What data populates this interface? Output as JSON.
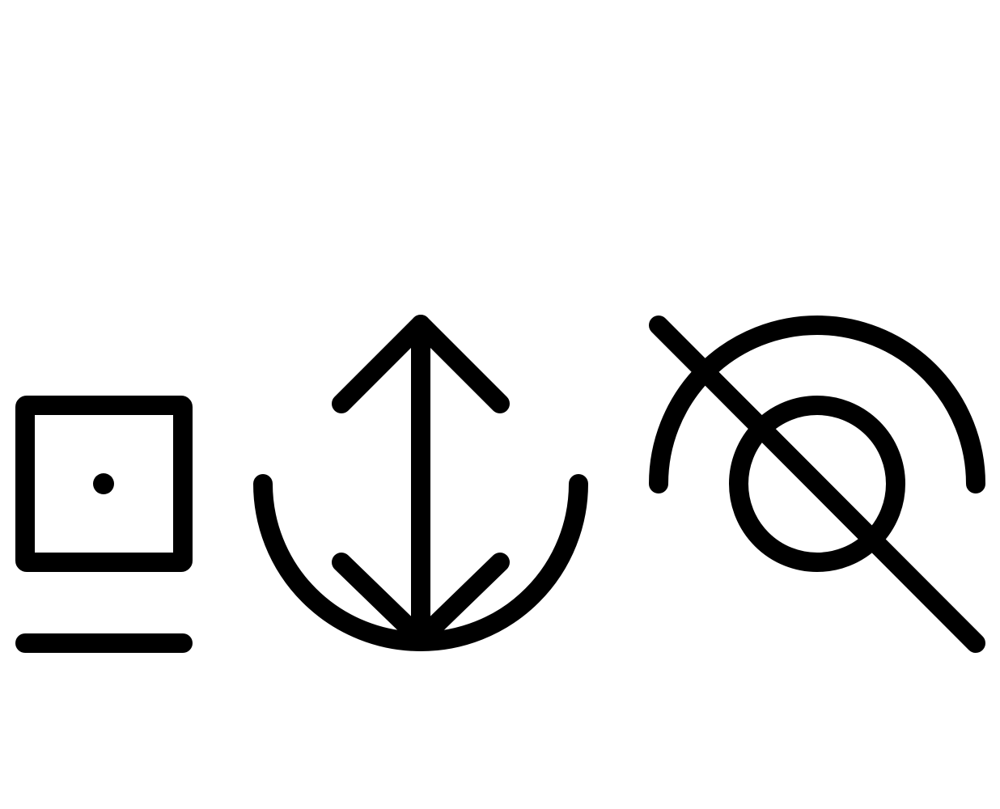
{
  "background_color": "#ffffff",
  "stroke_color": "#000000",
  "icons": [
    {
      "name": "square-with-dot-and-baseline-icon"
    },
    {
      "name": "vertical-double-arrow-in-bowl-icon"
    },
    {
      "name": "crossed-out-target-icon"
    }
  ]
}
